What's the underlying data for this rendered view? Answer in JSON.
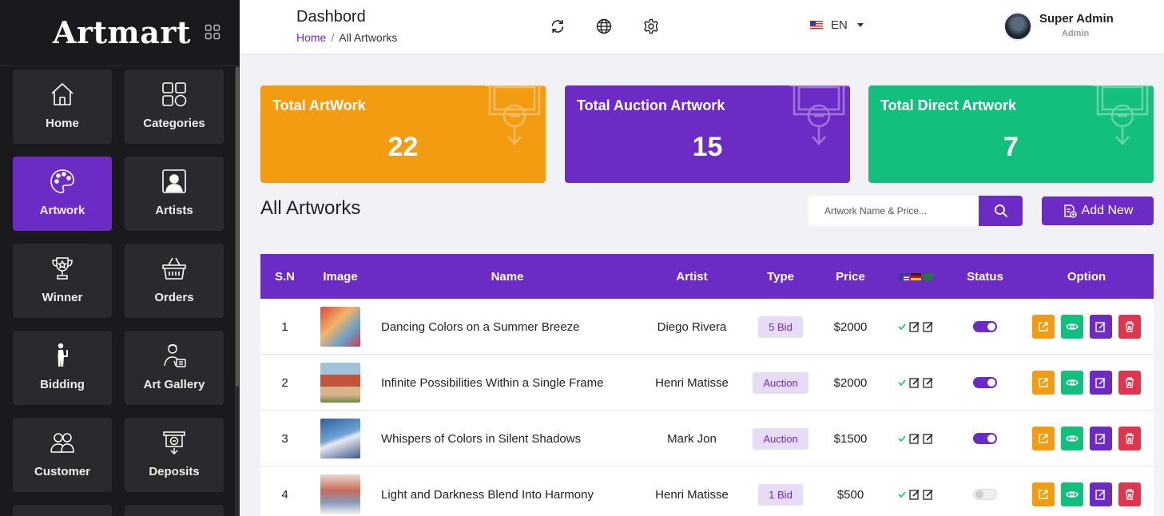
{
  "sidebar": {
    "logo": "Artmart",
    "items": [
      {
        "label": "Home",
        "icon": "home-icon"
      },
      {
        "label": "Categories",
        "icon": "categories-icon"
      },
      {
        "label": "Artwork",
        "icon": "palette-icon",
        "active": true
      },
      {
        "label": "Artists",
        "icon": "artist-icon"
      },
      {
        "label": "Winner",
        "icon": "trophy-icon"
      },
      {
        "label": "Orders",
        "icon": "basket-icon"
      },
      {
        "label": "Bidding",
        "icon": "bidding-icon"
      },
      {
        "label": "Art Gallery",
        "icon": "gallery-icon"
      },
      {
        "label": "Customer",
        "icon": "customer-icon"
      },
      {
        "label": "Deposits",
        "icon": "deposit-icon"
      }
    ]
  },
  "header": {
    "title": "Dashbord",
    "breadcrumb": {
      "home": "Home",
      "separator": "/",
      "current": "All Artworks"
    },
    "language": "EN",
    "user": {
      "name": "Super Admin",
      "role": "Admin"
    }
  },
  "stats": [
    {
      "title": "Total ArtWork",
      "value": "22",
      "color": "#f39c12"
    },
    {
      "title": "Total Auction Artwork",
      "value": "15",
      "color": "#6d2bc5"
    },
    {
      "title": "Total Direct Artwork",
      "value": "7",
      "color": "#13bf7d"
    }
  ],
  "section": {
    "title": "All Artworks",
    "search_placeholder": "Artwork Name & Price...",
    "add_label": "Add New"
  },
  "table": {
    "columns": [
      "S.N",
      "Image",
      "Name",
      "Artist",
      "Type",
      "Price",
      "",
      "Status",
      "Option"
    ],
    "rows": [
      {
        "sn": "1",
        "name": "Dancing Colors on a Summer Breeze",
        "artist": "Diego Rivera",
        "type": "5 Bid",
        "price": "$2000",
        "status": true
      },
      {
        "sn": "2",
        "name": "Infinite Possibilities Within a Single Frame",
        "artist": "Henri Matisse",
        "type": "Auction",
        "price": "$2000",
        "status": true
      },
      {
        "sn": "3",
        "name": "Whispers of Colors in Silent Shadows",
        "artist": "Mark Jon",
        "type": "Auction",
        "price": "$1500",
        "status": true
      },
      {
        "sn": "4",
        "name": "Light and Darkness Blend Into Harmony",
        "artist": "Henri Matisse",
        "type": "1 Bid",
        "price": "$500",
        "status": false
      }
    ]
  },
  "colors": {
    "accent": "#6d2bc5",
    "orange": "#f39c12",
    "green": "#13bf7d",
    "red": "#e0364d",
    "sidebar": "#1a1a1e"
  }
}
